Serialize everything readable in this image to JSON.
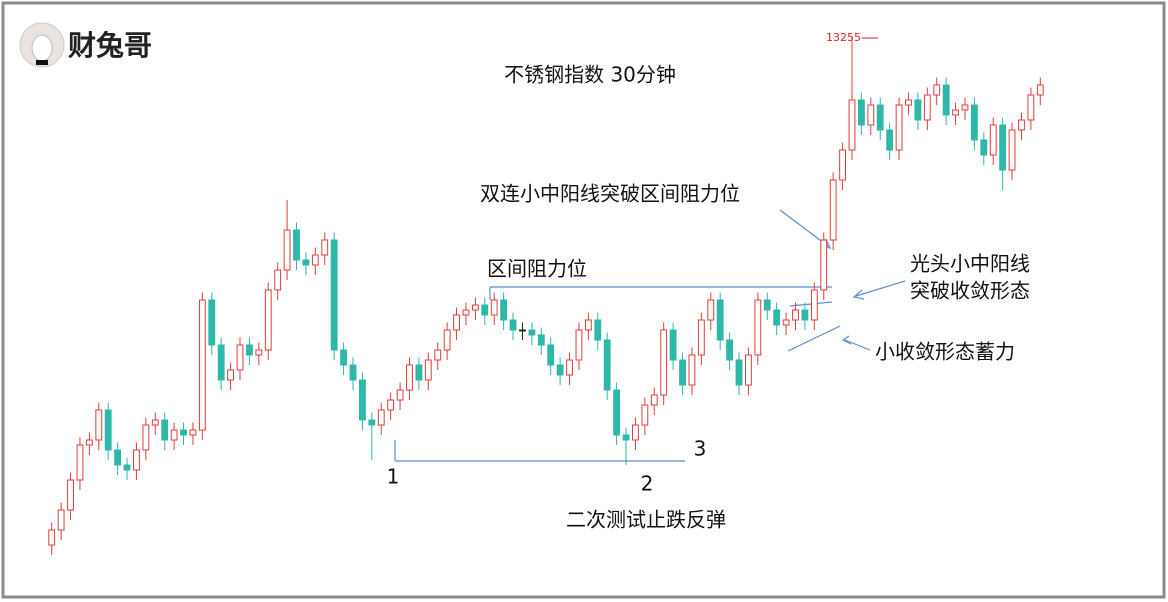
{
  "logo": "财兔哥",
  "annotations": {
    "breakout": "双连小中阳线突破区间阻力位",
    "resistance": "区间阻力位",
    "bald_top_line1": "光头小中阳线",
    "bald_top_line2": "突破收敛形态",
    "small_convergence": "小收敛形态蓄力",
    "second_test": "二次测试止跌反弹",
    "marker1": "1",
    "marker2": "2",
    "marker3": "3"
  },
  "chart_data": {
    "type": "candlestick",
    "title": "不锈钢指数 30分钟",
    "up_color": "#e23b3b",
    "down_color": "#2db8a8",
    "ylim": [
      12200,
      13300
    ],
    "open": [
      12240,
      12270,
      12310,
      12370,
      12440,
      12450,
      12510,
      12430,
      12400,
      12390,
      12430,
      12480,
      12490,
      12450,
      12470,
      12460,
      12470,
      12730,
      12640,
      12570,
      12590,
      12640,
      12620,
      12630,
      12750,
      12790,
      12870,
      12810,
      12800,
      12820,
      12850,
      12630,
      12600,
      12570,
      12490,
      12480,
      12510,
      12530,
      12550,
      12600,
      12570,
      12610,
      12630,
      12670,
      12700,
      12710,
      12720,
      12700,
      12730,
      12690,
      12670,
      12670,
      12660,
      12640,
      12600,
      12580,
      12610,
      12670,
      12690,
      12650,
      12550,
      12460,
      12450,
      12480,
      12520,
      12540,
      12670,
      12610,
      12560,
      12620,
      12690,
      12730,
      12650,
      12610,
      12560,
      12620,
      12730,
      12710,
      12680,
      12690,
      12710,
      12690,
      12750,
      12850,
      12970,
      13030,
      13130,
      13080,
      13120,
      13070,
      13030,
      13120,
      13130,
      13090,
      13140,
      13160,
      13100,
      13110,
      13120,
      13050,
      13020,
      13080,
      12990,
      13070,
      13090,
      13140
    ],
    "high": [
      12285,
      12325,
      12385,
      12455,
      12465,
      12525,
      12525,
      12445,
      12415,
      12445,
      12495,
      12505,
      12505,
      12485,
      12485,
      12485,
      12745,
      12745,
      12655,
      12605,
      12655,
      12655,
      12645,
      12765,
      12805,
      12930,
      12885,
      12825,
      12835,
      12865,
      12865,
      12645,
      12615,
      12585,
      12505,
      12525,
      12545,
      12565,
      12615,
      12615,
      12625,
      12645,
      12685,
      12715,
      12725,
      12735,
      12735,
      12745,
      12745,
      12705,
      12685,
      12685,
      12675,
      12655,
      12615,
      12625,
      12685,
      12705,
      12705,
      12665,
      12565,
      12475,
      12495,
      12535,
      12555,
      12685,
      12685,
      12625,
      12635,
      12705,
      12745,
      12745,
      12665,
      12625,
      12635,
      12745,
      12745,
      12725,
      12705,
      12725,
      12725,
      12765,
      12865,
      12985,
      13045,
      13255,
      13145,
      13135,
      13135,
      13085,
      13135,
      13145,
      13145,
      13155,
      13175,
      13175,
      13125,
      13135,
      13135,
      13065,
      13095,
      13095,
      13085,
      13105,
      13155,
      13175
    ],
    "low": [
      12220,
      12250,
      12290,
      12350,
      12420,
      12430,
      12410,
      12380,
      12370,
      12370,
      12410,
      12460,
      12430,
      12430,
      12440,
      12440,
      12450,
      12620,
      12550,
      12550,
      12570,
      12600,
      12600,
      12610,
      12730,
      12770,
      12790,
      12780,
      12780,
      12800,
      12610,
      12580,
      12550,
      12470,
      12410,
      12460,
      12490,
      12510,
      12530,
      12550,
      12550,
      12590,
      12610,
      12650,
      12680,
      12690,
      12680,
      12680,
      12670,
      12650,
      12650,
      12640,
      12620,
      12580,
      12560,
      12560,
      12590,
      12650,
      12630,
      12530,
      12440,
      12400,
      12430,
      12460,
      12500,
      12520,
      12590,
      12540,
      12540,
      12600,
      12670,
      12630,
      12590,
      12540,
      12540,
      12600,
      12690,
      12660,
      12660,
      12670,
      12670,
      12670,
      12730,
      12830,
      12950,
      13010,
      13060,
      13060,
      13050,
      13010,
      13010,
      13100,
      13070,
      13070,
      13120,
      13080,
      13080,
      13090,
      13030,
      13000,
      13000,
      12950,
      12970,
      13050,
      13070,
      13120
    ],
    "close": [
      12270,
      12310,
      12370,
      12440,
      12450,
      12510,
      12430,
      12400,
      12390,
      12430,
      12480,
      12490,
      12450,
      12470,
      12460,
      12470,
      12730,
      12640,
      12570,
      12590,
      12640,
      12620,
      12630,
      12750,
      12790,
      12870,
      12810,
      12800,
      12820,
      12850,
      12630,
      12600,
      12570,
      12490,
      12480,
      12510,
      12530,
      12550,
      12600,
      12570,
      12610,
      12630,
      12670,
      12700,
      12710,
      12720,
      12700,
      12730,
      12690,
      12670,
      12670,
      12660,
      12640,
      12600,
      12580,
      12610,
      12670,
      12690,
      12650,
      12550,
      12460,
      12450,
      12480,
      12520,
      12540,
      12670,
      12610,
      12560,
      12620,
      12690,
      12730,
      12650,
      12610,
      12560,
      12620,
      12730,
      12710,
      12680,
      12690,
      12710,
      12690,
      12750,
      12850,
      12970,
      13030,
      13130,
      13080,
      13120,
      13070,
      13030,
      13120,
      13130,
      13090,
      13140,
      13160,
      13100,
      13110,
      13120,
      13050,
      13020,
      13080,
      12990,
      13070,
      13090,
      13140,
      13160
    ]
  }
}
